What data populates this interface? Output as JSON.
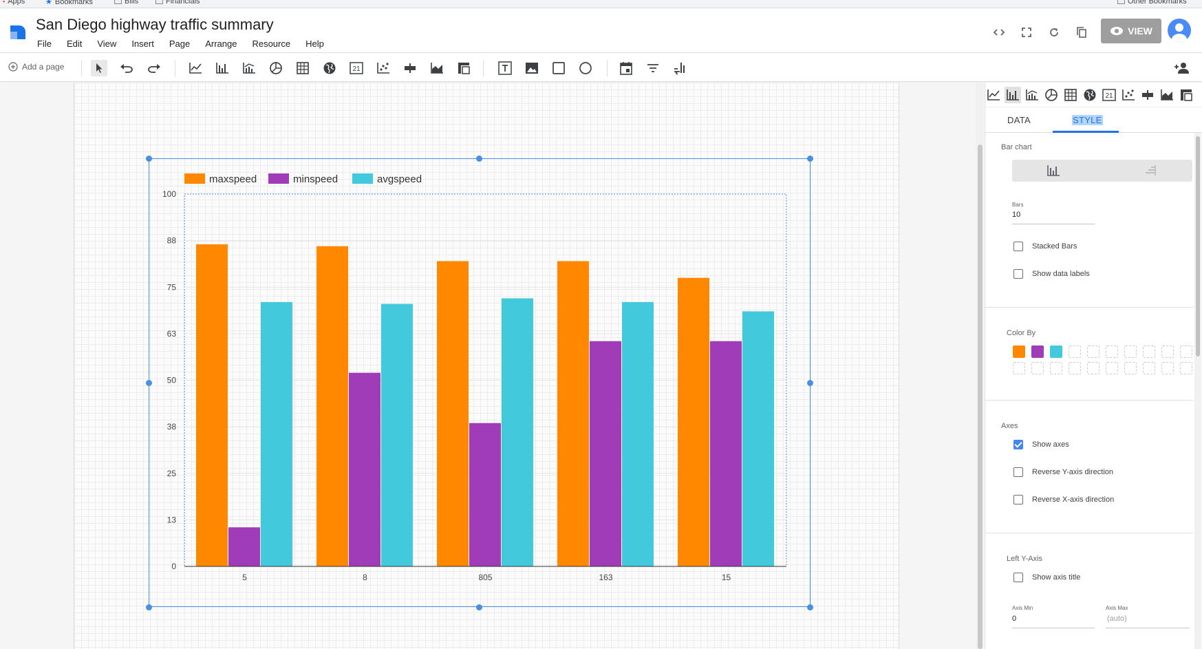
{
  "bookmarks_bar": {
    "items": [
      "Apps",
      "Bookmarks",
      "Bills",
      "Financials"
    ],
    "right_item": "Other Bookmarks"
  },
  "header": {
    "title": "San Diego highway traffic summary",
    "menu": [
      "File",
      "Edit",
      "View",
      "Insert",
      "Page",
      "Arrange",
      "Resource",
      "Help"
    ],
    "view_button_label": "VIEW"
  },
  "toolbar": {
    "add_page_label": "Add a page"
  },
  "chart_data": {
    "type": "bar",
    "categories": [
      "5",
      "8",
      "805",
      "163",
      "15"
    ],
    "series": [
      {
        "name": "maxspeed",
        "color": "#ff8800",
        "values": [
          86.5,
          86,
          82,
          82,
          77.5
        ]
      },
      {
        "name": "minspeed",
        "color": "#a03cb8",
        "values": [
          10.5,
          52,
          38.5,
          60.5,
          60.5
        ]
      },
      {
        "name": "avgspeed",
        "color": "#43c9dc",
        "values": [
          71,
          70.5,
          72,
          71,
          68.5
        ]
      }
    ],
    "yticks": [
      "0",
      "13",
      "25",
      "38",
      "50",
      "63",
      "75",
      "88",
      "100"
    ],
    "ylim": [
      0,
      100
    ],
    "legend_position": "top-left",
    "grid": true
  },
  "panel": {
    "tabs": [
      "DATA",
      "STYLE"
    ],
    "active_tab": "STYLE",
    "bar_chart_title": "Bar chart",
    "bars_label": "Bars",
    "bars_value": "10",
    "stacked_bars_label": "Stacked Bars",
    "show_data_labels_label": "Show data labels",
    "color_by_title": "Color By",
    "color_by_swatches": [
      "#ff8800",
      "#a03cb8",
      "#43c9dc"
    ],
    "axes_title": "Axes",
    "show_axes_label": "Show axes",
    "reverse_y_label": "Reverse Y-axis direction",
    "reverse_x_label": "Reverse X-axis direction",
    "left_y_axis_title": "Left Y-Axis",
    "show_axis_title_label": "Show axis title",
    "axis_min_label": "Axis Min",
    "axis_min_value": "0",
    "axis_max_label": "Axis Max",
    "axis_max_value": "(auto)"
  },
  "colors": {
    "accent": "#1a73e8",
    "selection": "#4a90e2"
  }
}
